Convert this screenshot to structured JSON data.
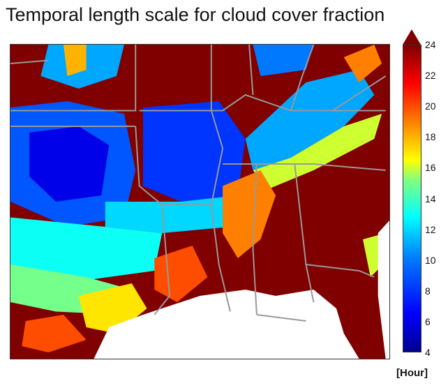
{
  "chart_data": {
    "type": "heatmap",
    "title": "Temporal length scale for cloud cover fraction",
    "colorbar": {
      "unit_label": "[Hour]",
      "ticks": [
        4,
        6,
        8,
        10,
        12,
        14,
        16,
        18,
        20,
        22,
        24
      ],
      "range": [
        4,
        24
      ],
      "extend": "max",
      "colormap": "jet"
    },
    "background_value": 24,
    "ocean_color": "#ffffff",
    "border_color": "#999999",
    "regions": [
      {
        "label": "northwest-plains-low",
        "value": 9,
        "poly": [
          [
            0.0,
            0.2
          ],
          [
            0.15,
            0.18
          ],
          [
            0.3,
            0.22
          ],
          [
            0.33,
            0.4
          ],
          [
            0.3,
            0.55
          ],
          [
            0.15,
            0.58
          ],
          [
            0.0,
            0.5
          ]
        ]
      },
      {
        "label": "northwest-plains-core",
        "value": 6,
        "poly": [
          [
            0.05,
            0.28
          ],
          [
            0.18,
            0.26
          ],
          [
            0.26,
            0.32
          ],
          [
            0.24,
            0.48
          ],
          [
            0.12,
            0.5
          ],
          [
            0.05,
            0.42
          ]
        ]
      },
      {
        "label": "north-top-band",
        "value": 11,
        "poly": [
          [
            0.1,
            0.0
          ],
          [
            0.3,
            0.0
          ],
          [
            0.28,
            0.1
          ],
          [
            0.18,
            0.14
          ],
          [
            0.08,
            0.1
          ]
        ]
      },
      {
        "label": "north-top-orange",
        "value": 18,
        "poly": [
          [
            0.14,
            0.0
          ],
          [
            0.2,
            0.0
          ],
          [
            0.2,
            0.08
          ],
          [
            0.15,
            0.1
          ]
        ]
      },
      {
        "label": "central-blue-band",
        "value": 8,
        "poly": [
          [
            0.35,
            0.2
          ],
          [
            0.55,
            0.18
          ],
          [
            0.62,
            0.3
          ],
          [
            0.6,
            0.48
          ],
          [
            0.45,
            0.5
          ],
          [
            0.35,
            0.45
          ]
        ]
      },
      {
        "label": "central-cyan-fringe",
        "value": 12,
        "poly": [
          [
            0.25,
            0.5
          ],
          [
            0.45,
            0.5
          ],
          [
            0.6,
            0.48
          ],
          [
            0.58,
            0.58
          ],
          [
            0.4,
            0.6
          ],
          [
            0.25,
            0.58
          ]
        ]
      },
      {
        "label": "southwest-cyan",
        "value": 13,
        "poly": [
          [
            0.0,
            0.55
          ],
          [
            0.25,
            0.58
          ],
          [
            0.4,
            0.6
          ],
          [
            0.38,
            0.72
          ],
          [
            0.2,
            0.75
          ],
          [
            0.0,
            0.7
          ]
        ]
      },
      {
        "label": "southwest-green",
        "value": 15,
        "poly": [
          [
            0.0,
            0.7
          ],
          [
            0.2,
            0.74
          ],
          [
            0.32,
            0.78
          ],
          [
            0.3,
            0.86
          ],
          [
            0.12,
            0.85
          ],
          [
            0.0,
            0.82
          ]
        ]
      },
      {
        "label": "southwest-yellow",
        "value": 17,
        "poly": [
          [
            0.18,
            0.8
          ],
          [
            0.32,
            0.76
          ],
          [
            0.36,
            0.84
          ],
          [
            0.28,
            0.92
          ],
          [
            0.2,
            0.9
          ]
        ]
      },
      {
        "label": "southwest-orange",
        "value": 20,
        "poly": [
          [
            0.04,
            0.88
          ],
          [
            0.14,
            0.86
          ],
          [
            0.2,
            0.94
          ],
          [
            0.1,
            0.98
          ],
          [
            0.03,
            0.96
          ]
        ]
      },
      {
        "label": "east-cyan-band",
        "value": 11,
        "poly": [
          [
            0.62,
            0.3
          ],
          [
            0.78,
            0.12
          ],
          [
            0.92,
            0.08
          ],
          [
            0.96,
            0.16
          ],
          [
            0.88,
            0.26
          ],
          [
            0.74,
            0.36
          ],
          [
            0.64,
            0.4
          ]
        ]
      },
      {
        "label": "east-yellow-band",
        "value": 16,
        "poly": [
          [
            0.64,
            0.4
          ],
          [
            0.74,
            0.36
          ],
          [
            0.88,
            0.26
          ],
          [
            0.98,
            0.22
          ],
          [
            0.96,
            0.3
          ],
          [
            0.8,
            0.4
          ],
          [
            0.68,
            0.46
          ]
        ]
      },
      {
        "label": "northeast-orange",
        "value": 19,
        "poly": [
          [
            0.88,
            0.04
          ],
          [
            0.96,
            0.0
          ],
          [
            0.98,
            0.06
          ],
          [
            0.92,
            0.12
          ]
        ]
      },
      {
        "label": "top-blue-patch",
        "value": 10,
        "poly": [
          [
            0.64,
            0.0
          ],
          [
            0.8,
            0.0
          ],
          [
            0.78,
            0.08
          ],
          [
            0.66,
            0.1
          ]
        ]
      },
      {
        "label": "central-orange-edge",
        "value": 19,
        "poly": [
          [
            0.56,
            0.45
          ],
          [
            0.66,
            0.4
          ],
          [
            0.7,
            0.48
          ],
          [
            0.66,
            0.62
          ],
          [
            0.6,
            0.68
          ],
          [
            0.56,
            0.6
          ]
        ]
      },
      {
        "label": "mid-south-orange",
        "value": 20,
        "poly": [
          [
            0.38,
            0.68
          ],
          [
            0.48,
            0.64
          ],
          [
            0.52,
            0.74
          ],
          [
            0.44,
            0.82
          ],
          [
            0.38,
            0.78
          ]
        ]
      },
      {
        "label": "east-coast-yellow",
        "value": 16,
        "poly": [
          [
            0.93,
            0.62
          ],
          [
            0.99,
            0.6
          ],
          [
            1.0,
            0.68
          ],
          [
            0.95,
            0.74
          ]
        ]
      }
    ],
    "ocean": [
      {
        "label": "gulf-of-mexico",
        "poly": [
          [
            0.22,
            1.0
          ],
          [
            0.26,
            0.9
          ],
          [
            0.35,
            0.86
          ],
          [
            0.5,
            0.8
          ],
          [
            0.62,
            0.78
          ],
          [
            0.7,
            0.8
          ],
          [
            0.8,
            0.78
          ],
          [
            0.86,
            0.84
          ],
          [
            0.88,
            0.92
          ],
          [
            0.92,
            1.0
          ]
        ]
      },
      {
        "label": "atlantic-east",
        "poly": [
          [
            0.97,
            0.6
          ],
          [
            1.0,
            0.56
          ],
          [
            1.0,
            1.0
          ],
          [
            0.99,
            1.0
          ],
          [
            0.97,
            0.8
          ]
        ]
      }
    ],
    "borders": [
      [
        [
          0.0,
          0.21
        ],
        [
          0.33,
          0.21
        ],
        [
          0.33,
          0.0
        ]
      ],
      [
        [
          0.0,
          0.26
        ],
        [
          0.33,
          0.26
        ]
      ],
      [
        [
          0.34,
          0.21
        ],
        [
          0.56,
          0.21
        ],
        [
          0.62,
          0.16
        ],
        [
          0.74,
          0.21
        ],
        [
          0.99,
          0.21
        ]
      ],
      [
        [
          0.53,
          0.0
        ],
        [
          0.53,
          0.21
        ]
      ],
      [
        [
          0.33,
          0.26
        ],
        [
          0.34,
          0.45
        ],
        [
          0.4,
          0.51
        ],
        [
          0.53,
          0.51
        ]
      ],
      [
        [
          0.53,
          0.21
        ],
        [
          0.56,
          0.33
        ],
        [
          0.53,
          0.51
        ],
        [
          0.55,
          0.7
        ],
        [
          0.58,
          0.85
        ]
      ],
      [
        [
          0.56,
          0.38
        ],
        [
          0.8,
          0.38
        ],
        [
          0.99,
          0.4
        ]
      ],
      [
        [
          0.65,
          0.38
        ],
        [
          0.64,
          0.65
        ],
        [
          0.65,
          0.86
        ]
      ],
      [
        [
          0.75,
          0.38
        ],
        [
          0.78,
          0.7
        ],
        [
          0.8,
          0.82
        ]
      ],
      [
        [
          0.78,
          0.7
        ],
        [
          0.92,
          0.72
        ],
        [
          0.96,
          0.74
        ]
      ],
      [
        [
          0.65,
          0.86
        ],
        [
          0.78,
          0.88
        ]
      ],
      [
        [
          0.4,
          0.51
        ],
        [
          0.42,
          0.8
        ],
        [
          0.38,
          0.86
        ]
      ],
      [
        [
          0.0,
          0.06
        ],
        [
          0.1,
          0.05
        ]
      ],
      [
        [
          0.63,
          0.0
        ],
        [
          0.64,
          0.16
        ]
      ],
      [
        [
          0.8,
          0.0
        ],
        [
          0.77,
          0.1
        ],
        [
          0.74,
          0.21
        ]
      ],
      [
        [
          0.85,
          0.21
        ],
        [
          0.99,
          0.1
        ]
      ]
    ]
  }
}
